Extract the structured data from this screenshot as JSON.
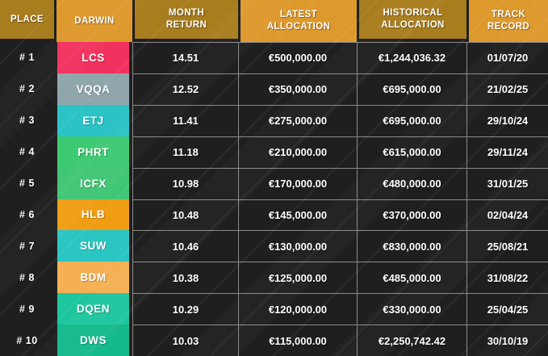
{
  "table": {
    "columns": [
      {
        "key": "place",
        "label": "PLACE"
      },
      {
        "key": "darwin",
        "label": "DARWIN"
      },
      {
        "key": "month_return",
        "label": "MONTH\nRETURN"
      },
      {
        "key": "latest_allocation",
        "label": "LATEST\nALLOCATION"
      },
      {
        "key": "historical_allocation",
        "label": "HISTORICAL\nALLOCATION"
      },
      {
        "key": "track_record",
        "label": "TRACK\nRECORD"
      }
    ],
    "rows": [
      {
        "place": "# 1",
        "darwin": "LCS",
        "badge_color": "#f1325e",
        "month_return": "14.51",
        "latest_allocation": "€500,000.00",
        "historical_allocation": "€1,244,036.32",
        "track_record": "01/07/20"
      },
      {
        "place": "# 2",
        "darwin": "VQQA",
        "badge_color": "#8fa6ab",
        "month_return": "12.52",
        "latest_allocation": "€350,000.00",
        "historical_allocation": "€695,000.00",
        "track_record": "21/02/25"
      },
      {
        "place": "# 3",
        "darwin": "ETJ",
        "badge_color": "#2bc3c6",
        "month_return": "11.41",
        "latest_allocation": "€275,000.00",
        "historical_allocation": "€695,000.00",
        "track_record": "29/10/24"
      },
      {
        "place": "# 4",
        "darwin": "PHRT",
        "badge_color": "#3ec973",
        "month_return": "11.18",
        "latest_allocation": "€210,000.00",
        "historical_allocation": "€615,000.00",
        "track_record": "29/11/24"
      },
      {
        "place": "# 5",
        "darwin": "ICFX",
        "badge_color": "#41c676",
        "month_return": "10.98",
        "latest_allocation": "€170,000.00",
        "historical_allocation": "€480,000.00",
        "track_record": "31/01/25"
      },
      {
        "place": "# 6",
        "darwin": "HLB",
        "badge_color": "#f09d13",
        "month_return": "10.48",
        "latest_allocation": "€145,000.00",
        "historical_allocation": "€370,000.00",
        "track_record": "02/04/24"
      },
      {
        "place": "# 7",
        "darwin": "SUW",
        "badge_color": "#2cc6c2",
        "month_return": "10.46",
        "latest_allocation": "€130,000.00",
        "historical_allocation": "€830,000.00",
        "track_record": "25/08/21"
      },
      {
        "place": "# 8",
        "darwin": "BDM",
        "badge_color": "#f4b053",
        "month_return": "10.38",
        "latest_allocation": "€125,000.00",
        "historical_allocation": "€485,000.00",
        "track_record": "31/08/22"
      },
      {
        "place": "# 9",
        "darwin": "DQEN",
        "badge_color": "#1ec69e",
        "month_return": "10.29",
        "latest_allocation": "€120,000.00",
        "historical_allocation": "€330,000.00",
        "track_record": "25/04/25"
      },
      {
        "place": "# 10",
        "darwin": "DWS",
        "badge_color": "#14b98c",
        "month_return": "10.03",
        "latest_allocation": "€115,000.00",
        "historical_allocation": "€2,250,742.42",
        "track_record": "30/10/19"
      }
    ]
  },
  "colors": {
    "header_dark_gold": "#a87d1e",
    "header_bright_orange": "#de992c",
    "background": "#1f1f1f",
    "grid_line": "#8a8a8a",
    "text": "#ffffff"
  }
}
